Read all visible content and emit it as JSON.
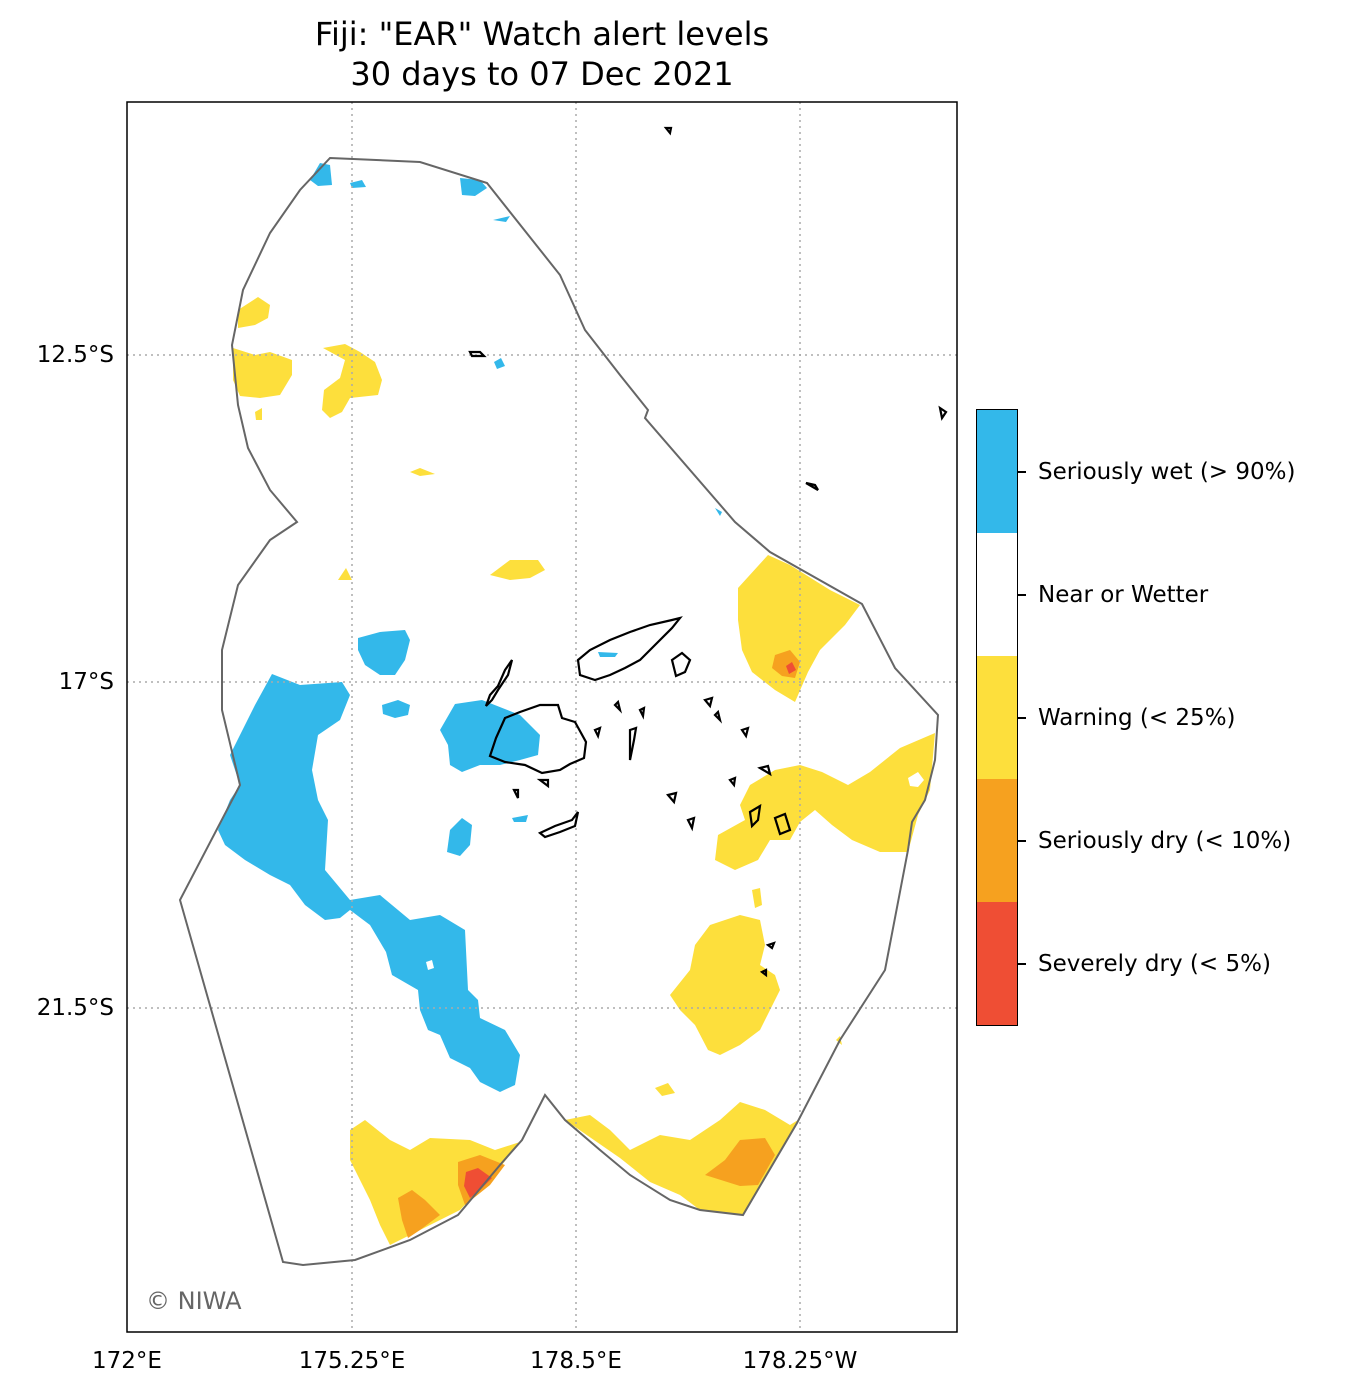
{
  "title": {
    "line1": "Fiji: \"EAR\" Watch alert levels",
    "line2": "30 days to 07 Dec 2021"
  },
  "axes": {
    "lat_labels": [
      "12.5°S",
      "17°S",
      "21.5°S"
    ],
    "lon_labels": [
      "172°E",
      "175.25°E",
      "178.5°E",
      "178.25°W"
    ],
    "gridlines": "dotted"
  },
  "legend": [
    {
      "label": "Seriously wet (> 90%)",
      "color": "#33b8ea"
    },
    {
      "label": "Near or Wetter",
      "color": "#ffffff"
    },
    {
      "label": "Warning (< 25%)",
      "color": "#fddf3c"
    },
    {
      "label": "Seriously dry (< 10%)",
      "color": "#f6a11f"
    },
    {
      "label": "Severely dry (< 5%)",
      "color": "#ef4e34"
    }
  ],
  "credit": "© NIWA",
  "colors": {
    "wet": "#33b8ea",
    "warning": "#fddf3c",
    "seriously_dry": "#f6a11f",
    "severely_dry": "#ef4e34",
    "boundary": "#666666",
    "coastline": "#000000"
  }
}
